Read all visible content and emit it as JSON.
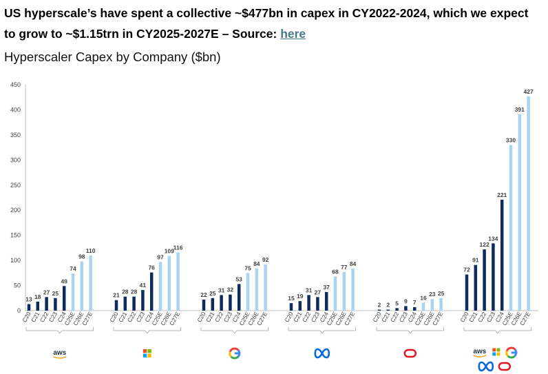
{
  "headline": {
    "text": "US hyperscale’s have spent a collective ~$477bn in capex in CY2022-2024, which we expect to grow to ~$1.15trn in CY2025-2027E – Source: ",
    "link_label": "here"
  },
  "colors": {
    "actual": "#0f2a5c",
    "estimate": "#a9d3ee",
    "axis": "#bfbfbf",
    "label": "#404040"
  },
  "chart_data": {
    "type": "bar",
    "title": "Hyperscaler Capex by Company ($bn)",
    "xlabel": "",
    "ylabel": "",
    "ylim": [
      0,
      450
    ],
    "yticks": [
      0,
      50,
      100,
      150,
      200,
      250,
      300,
      350,
      400,
      450
    ],
    "grid": false,
    "categories": [
      "C20",
      "C21",
      "C22",
      "C23",
      "C24",
      "C25E",
      "C26E",
      "C27E"
    ],
    "estimate_from_index": 5,
    "groups": [
      {
        "logo": "aws",
        "values": [
          13,
          18,
          27,
          25,
          49,
          74,
          98,
          110
        ]
      },
      {
        "logo": "microsoft",
        "values": [
          21,
          28,
          28,
          41,
          76,
          97,
          109,
          116
        ]
      },
      {
        "logo": "google",
        "values": [
          22,
          25,
          31,
          32,
          53,
          75,
          84,
          92
        ]
      },
      {
        "logo": "meta",
        "values": [
          15,
          19,
          31,
          27,
          37,
          68,
          77,
          84
        ]
      },
      {
        "logo": "oracle",
        "values": [
          2,
          2,
          5,
          9,
          7,
          16,
          23,
          25
        ]
      },
      {
        "logo": "total",
        "values": [
          72,
          91,
          122,
          134,
          221,
          330,
          391,
          427
        ]
      }
    ]
  }
}
